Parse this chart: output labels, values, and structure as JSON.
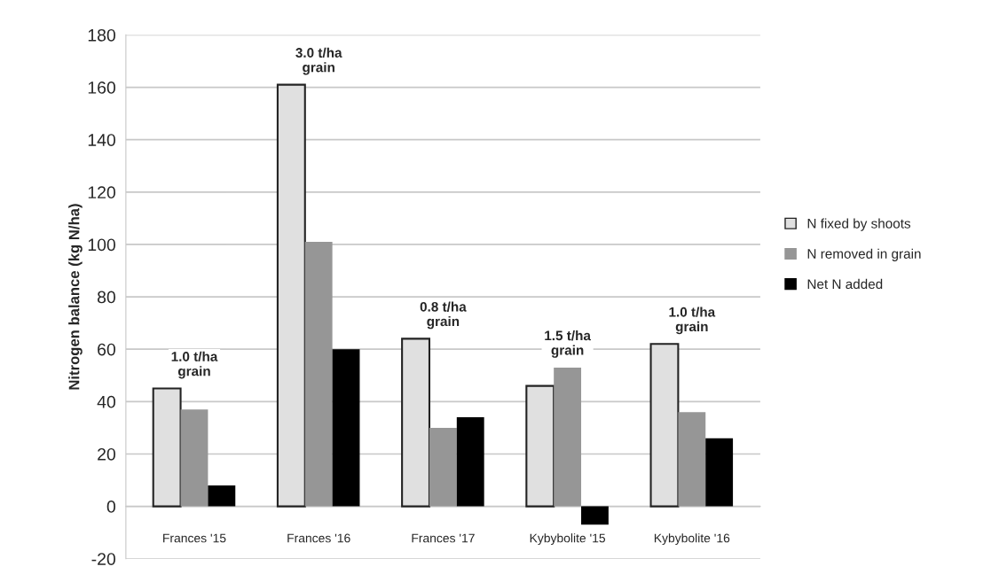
{
  "chart_data": {
    "type": "bar",
    "ylabel": "Nitrogen balance (kg N/ha)",
    "categories": [
      "Frances '15",
      "Frances '16",
      "Frances '17",
      "Kybybolite '15",
      "Kybybolite '16"
    ],
    "series": [
      {
        "name": "N fixed by shoots",
        "color": "#e0e0e0",
        "values": [
          45,
          161,
          64,
          46,
          62
        ]
      },
      {
        "name": "N removed in grain",
        "color": "#969696",
        "values": [
          37,
          101,
          30,
          53,
          36
        ]
      },
      {
        "name": "Net N added",
        "color": "#000000",
        "values": [
          8,
          60,
          34,
          -7,
          26
        ]
      }
    ],
    "ylim": [
      -20,
      180
    ],
    "yticks": [
      -20,
      0,
      20,
      40,
      60,
      80,
      100,
      120,
      140,
      160,
      180
    ],
    "grid": "y",
    "legend": "right",
    "annotations": [
      "1.0 t/ha\ngrain",
      "3.0 t/ha\ngrain",
      "0.8 t/ha\ngrain",
      "1.5 t/ha\ngrain",
      "1.0 t/ha\ngrain"
    ]
  }
}
